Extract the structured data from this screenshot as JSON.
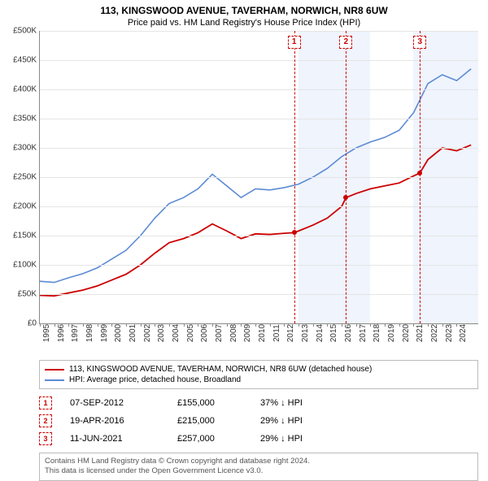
{
  "title": "113, KINGSWOOD AVENUE, TAVERHAM, NORWICH, NR8 6UW",
  "subtitle": "Price paid vs. HM Land Registry's House Price Index (HPI)",
  "chart": {
    "type": "line",
    "ylim": [
      0,
      500000
    ],
    "ytick_step": 50000,
    "yticks": [
      "£0",
      "£50K",
      "£100K",
      "£150K",
      "£200K",
      "£250K",
      "£300K",
      "£350K",
      "£400K",
      "£450K",
      "£500K"
    ],
    "x_start": 1995,
    "x_end": 2025.5,
    "xticks": [
      1995,
      1996,
      1997,
      1998,
      1999,
      2000,
      2001,
      2002,
      2003,
      2004,
      2005,
      2006,
      2007,
      2008,
      2009,
      2010,
      2011,
      2012,
      2013,
      2014,
      2015,
      2016,
      2017,
      2018,
      2019,
      2020,
      2021,
      2022,
      2023,
      2024
    ],
    "shaded_years": [
      2013,
      2014,
      2015,
      2016,
      2017,
      2021,
      2022,
      2023,
      2024,
      2025
    ],
    "background_color": "#ffffff",
    "grid_color": "#e5e5e5",
    "series": {
      "hpi": {
        "color": "#5b8bd4",
        "width": 1.6,
        "points": [
          [
            1995.0,
            72000
          ],
          [
            1996.0,
            70000
          ],
          [
            1997.0,
            78000
          ],
          [
            1998.0,
            85000
          ],
          [
            1999.0,
            95000
          ],
          [
            2000.0,
            110000
          ],
          [
            2001.0,
            125000
          ],
          [
            2002.0,
            150000
          ],
          [
            2003.0,
            180000
          ],
          [
            2004.0,
            205000
          ],
          [
            2005.0,
            215000
          ],
          [
            2006.0,
            230000
          ],
          [
            2007.0,
            255000
          ],
          [
            2008.0,
            235000
          ],
          [
            2009.0,
            215000
          ],
          [
            2010.0,
            230000
          ],
          [
            2011.0,
            228000
          ],
          [
            2012.0,
            232000
          ],
          [
            2013.0,
            238000
          ],
          [
            2014.0,
            250000
          ],
          [
            2015.0,
            265000
          ],
          [
            2016.0,
            285000
          ],
          [
            2017.0,
            300000
          ],
          [
            2018.0,
            310000
          ],
          [
            2019.0,
            318000
          ],
          [
            2020.0,
            330000
          ],
          [
            2021.0,
            360000
          ],
          [
            2022.0,
            410000
          ],
          [
            2023.0,
            425000
          ],
          [
            2024.0,
            415000
          ],
          [
            2025.0,
            435000
          ]
        ]
      },
      "property": {
        "color": "#cc0000",
        "width": 1.8,
        "points": [
          [
            1995.0,
            48000
          ],
          [
            1996.0,
            47000
          ],
          [
            1997.0,
            52000
          ],
          [
            1998.0,
            57000
          ],
          [
            1999.0,
            64000
          ],
          [
            2000.0,
            74000
          ],
          [
            2001.0,
            84000
          ],
          [
            2002.0,
            100000
          ],
          [
            2003.0,
            120000
          ],
          [
            2004.0,
            138000
          ],
          [
            2005.0,
            145000
          ],
          [
            2006.0,
            155000
          ],
          [
            2007.0,
            170000
          ],
          [
            2008.0,
            158000
          ],
          [
            2009.0,
            145000
          ],
          [
            2010.0,
            153000
          ],
          [
            2011.0,
            152000
          ],
          [
            2012.0,
            154000
          ],
          [
            2012.69,
            155000
          ],
          [
            2013.0,
            158000
          ],
          [
            2014.0,
            168000
          ],
          [
            2015.0,
            180000
          ],
          [
            2016.0,
            200000
          ],
          [
            2016.3,
            215000
          ],
          [
            2017.0,
            222000
          ],
          [
            2018.0,
            230000
          ],
          [
            2019.0,
            235000
          ],
          [
            2020.0,
            240000
          ],
          [
            2021.0,
            252000
          ],
          [
            2021.44,
            257000
          ],
          [
            2022.0,
            280000
          ],
          [
            2023.0,
            300000
          ],
          [
            2024.0,
            295000
          ],
          [
            2025.0,
            305000
          ]
        ]
      }
    },
    "markers": [
      {
        "n": "1",
        "x": 2012.69,
        "y": 155000
      },
      {
        "n": "2",
        "x": 2016.3,
        "y": 215000
      },
      {
        "n": "3",
        "x": 2021.44,
        "y": 257000
      }
    ]
  },
  "legend": {
    "property": {
      "label": "113, KINGSWOOD AVENUE, TAVERHAM, NORWICH, NR8 6UW (detached house)",
      "color": "#cc0000"
    },
    "hpi": {
      "label": "HPI: Average price, detached house, Broadland",
      "color": "#5b8bd4"
    }
  },
  "sales": [
    {
      "n": "1",
      "date": "07-SEP-2012",
      "price": "£155,000",
      "delta": "37% ↓ HPI"
    },
    {
      "n": "2",
      "date": "19-APR-2016",
      "price": "£215,000",
      "delta": "29% ↓ HPI"
    },
    {
      "n": "3",
      "date": "11-JUN-2021",
      "price": "£257,000",
      "delta": "29% ↓ HPI"
    }
  ],
  "footer": {
    "line1": "Contains HM Land Registry data © Crown copyright and database right 2024.",
    "line2": "This data is licensed under the Open Government Licence v3.0."
  }
}
